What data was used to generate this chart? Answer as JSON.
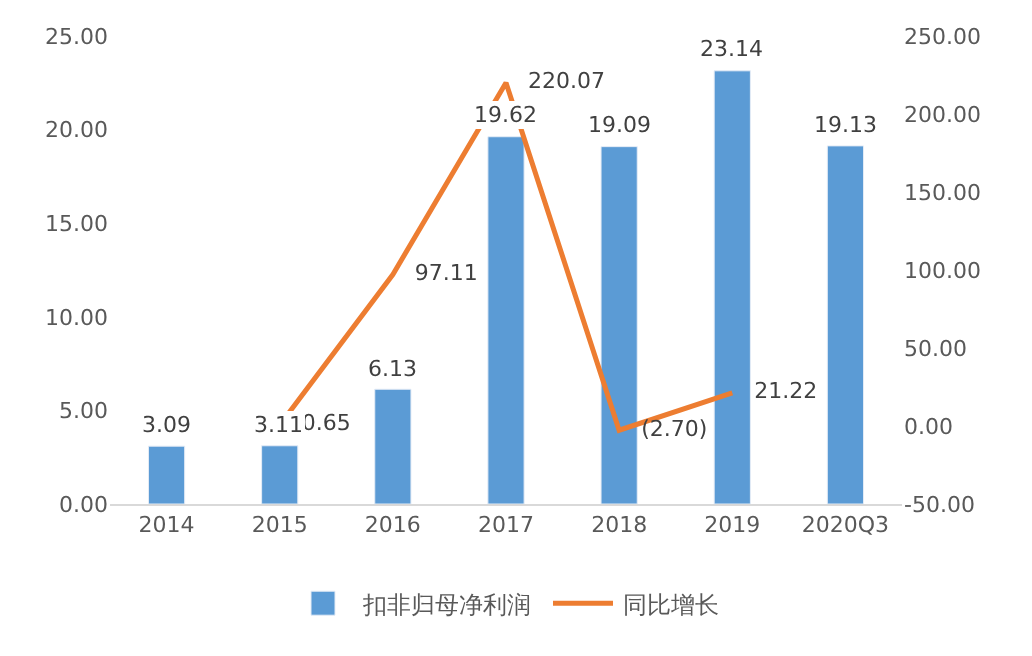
{
  "chart_data": {
    "type": "bar",
    "categories": [
      "2014",
      "2015",
      "2016",
      "2017",
      "2018",
      "2019",
      "2020Q3"
    ],
    "series": [
      {
        "name": "扣非归母净利润",
        "color": "#5b9bd5",
        "values": [
          3.09,
          3.11,
          6.13,
          19.62,
          19.09,
          23.14,
          19.13
        ],
        "value_labels": [
          "3.09",
          "3.11",
          "6.13",
          "19.62",
          "19.09",
          "23.14",
          "19.13"
        ]
      },
      {
        "name": "同比增长",
        "type": "line",
        "axis": "y2",
        "color": "#ed7d31",
        "values": [
          null,
          0.65,
          97.11,
          220.07,
          -2.7,
          21.22,
          null
        ],
        "value_labels": [
          null,
          "0.65",
          "97.11",
          "220.07",
          "(2.70)",
          "21.22",
          null
        ]
      }
    ],
    "ylim": [
      0,
      25
    ],
    "yticks": [
      {
        "value": 0,
        "label": "0.00"
      },
      {
        "value": 5,
        "label": "5.00"
      },
      {
        "value": 10,
        "label": "10.00"
      },
      {
        "value": 15,
        "label": "15.00"
      },
      {
        "value": 20,
        "label": "20.00"
      },
      {
        "value": 25,
        "label": "25.00"
      }
    ],
    "y2lim": [
      -50,
      250
    ],
    "y2ticks": [
      {
        "value": -50,
        "label": "-50.00"
      },
      {
        "value": 0,
        "label": "0.00"
      },
      {
        "value": 50,
        "label": "50.00"
      },
      {
        "value": 100,
        "label": "100.00"
      },
      {
        "value": 150,
        "label": "150.00"
      },
      {
        "value": 200,
        "label": "200.00"
      },
      {
        "value": 250,
        "label": "250.00"
      }
    ],
    "legend": "bottom",
    "marker": "none",
    "line_style": "solid"
  }
}
